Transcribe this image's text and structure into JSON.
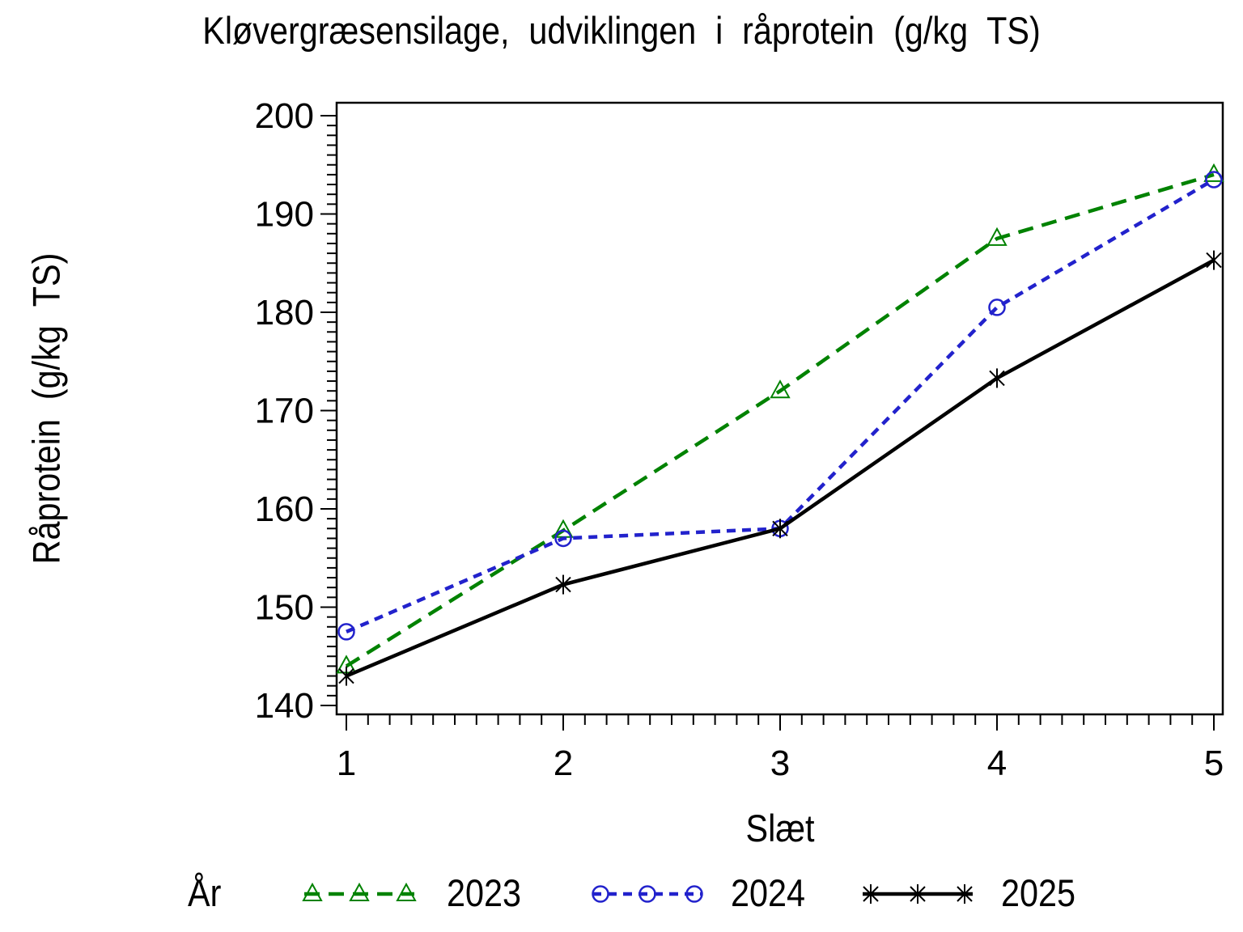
{
  "chart_data": {
    "type": "line",
    "title": "Kløvergræsensilage, udviklingen i råprotein (g/kg TS)",
    "xlabel": "Slæt",
    "ylabel": "Råprotein (g/kg TS)",
    "legend_title": "År",
    "legend_position": "bottom",
    "grid": false,
    "x": [
      1,
      2,
      3,
      4,
      5
    ],
    "xlim": [
      1,
      5
    ],
    "ylim": [
      140,
      200
    ],
    "xticks": [
      1,
      2,
      3,
      4,
      5
    ],
    "yticks": [
      140,
      150,
      160,
      170,
      180,
      190,
      200
    ],
    "x_minor_step": 0.1,
    "y_minor_step": 1,
    "series": [
      {
        "name": "2023",
        "color": "#008200",
        "line_style": "dashed",
        "dash": "19 11",
        "marker": "triangle",
        "values": [
          144,
          157.8,
          172,
          187.5,
          194
        ]
      },
      {
        "name": "2024",
        "color": "#2222cc",
        "line_style": "dashed",
        "dash": "11 8",
        "marker": "circle",
        "values": [
          147.5,
          157,
          158,
          180.5,
          193.5
        ]
      },
      {
        "name": "2025",
        "color": "#000000",
        "line_style": "solid",
        "dash": "",
        "marker": "asterisk",
        "values": [
          143,
          152.3,
          158,
          173.3,
          185.3
        ]
      }
    ]
  }
}
